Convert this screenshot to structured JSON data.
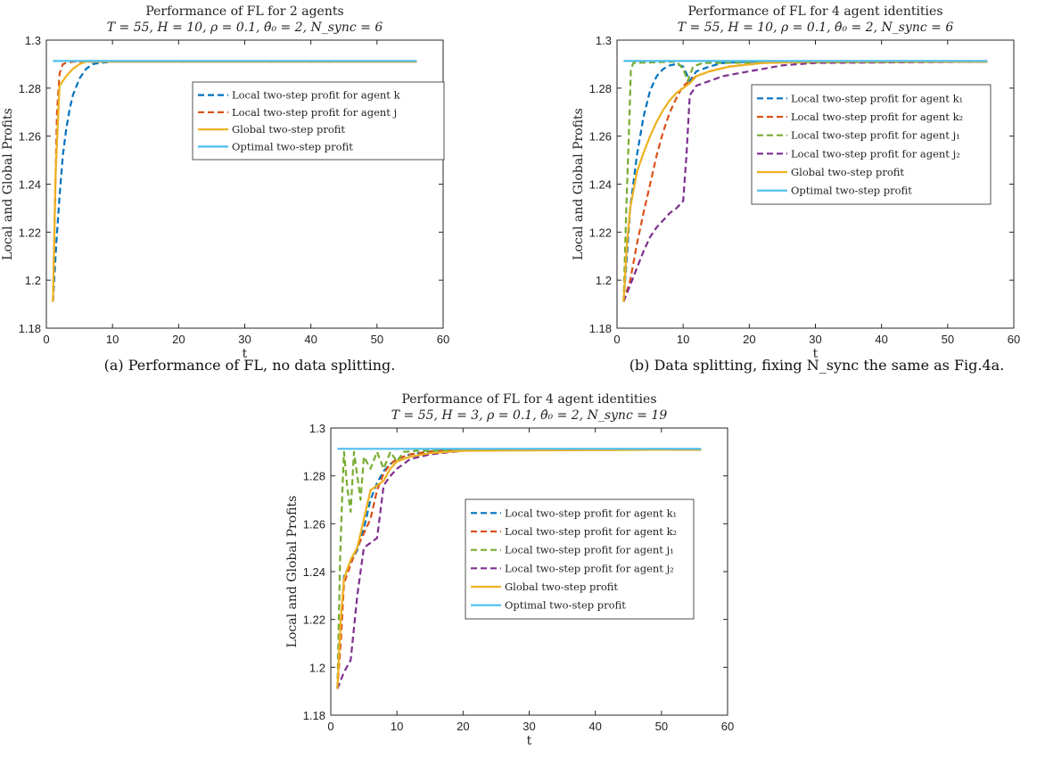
{
  "chart_data": [
    {
      "type": "line",
      "title": "Performance of FL for 2 agents",
      "subtitle": "T = 55, H = 10, ρ = 0.1, θ̂₀ = 2, N_sync = 6",
      "xlabel": "t",
      "ylabel": "Local and Global Profits",
      "xlim": [
        0,
        60
      ],
      "ylim": [
        1.18,
        1.3
      ],
      "xticks": [
        "0",
        "10",
        "20",
        "30",
        "40",
        "50",
        "60"
      ],
      "yticks": [
        "1.18",
        "1.2",
        "1.22",
        "1.24",
        "1.26",
        "1.28",
        "1.3"
      ],
      "grid": false,
      "legend_position": "top-right",
      "caption": "(a) Performance of FL, no data splitting.",
      "series": [
        {
          "name": "Local two-step profit for agent k",
          "color": "#0072BD",
          "dashed": true,
          "points": [
            [
              1,
              1.191
            ],
            [
              1.5,
              1.215
            ],
            [
              2,
              1.235
            ],
            [
              2.5,
              1.252
            ],
            [
              3,
              1.263
            ],
            [
              3.5,
              1.271
            ],
            [
              4,
              1.277
            ],
            [
              5,
              1.284
            ],
            [
              6,
              1.288
            ],
            [
              7,
              1.29
            ],
            [
              8,
              1.2905
            ],
            [
              10,
              1.291
            ],
            [
              56,
              1.291
            ]
          ]
        },
        {
          "name": "Local two-step profit for agent j",
          "color": "#D95319",
          "dashed": true,
          "points": [
            [
              1,
              1.191
            ],
            [
              1.3,
              1.23
            ],
            [
              1.6,
              1.27
            ],
            [
              2,
              1.286
            ],
            [
              2.5,
              1.29
            ],
            [
              3,
              1.2905
            ],
            [
              4,
              1.291
            ],
            [
              56,
              1.291
            ]
          ]
        },
        {
          "name": "Global two-step profit",
          "color": "#EDB120",
          "dashed": false,
          "points": [
            [
              1,
              1.191
            ],
            [
              1.4,
              1.245
            ],
            [
              2,
              1.281
            ],
            [
              3,
              1.285
            ],
            [
              4,
              1.288
            ],
            [
              5,
              1.29
            ],
            [
              6,
              1.291
            ],
            [
              56,
              1.291
            ]
          ]
        },
        {
          "name": "Optimal two-step profit",
          "color": "#4DBEEE",
          "dashed": false,
          "points": [
            [
              1,
              1.2913
            ],
            [
              56,
              1.2913
            ]
          ]
        }
      ]
    },
    {
      "type": "line",
      "title": "Performance of FL for 4 agent identities",
      "subtitle": "T = 55, H = 10, ρ = 0.1, θ̂₀ = 2, N_sync = 6",
      "xlabel": "t",
      "ylabel": "Local and Global Profits",
      "xlim": [
        0,
        60
      ],
      "ylim": [
        1.18,
        1.3
      ],
      "xticks": [
        "0",
        "10",
        "20",
        "30",
        "40",
        "50",
        "60"
      ],
      "yticks": [
        "1.18",
        "1.2",
        "1.22",
        "1.24",
        "1.26",
        "1.28",
        "1.3"
      ],
      "grid": false,
      "legend_position": "top-right",
      "caption": "(b) Data splitting, fixing N_sync the same as Fig.4a.",
      "series": [
        {
          "name": "Local two-step profit for agent k₁",
          "color": "#0072BD",
          "dashed": true,
          "points": [
            [
              1,
              1.191
            ],
            [
              1.5,
              1.21
            ],
            [
              2,
              1.23
            ],
            [
              3,
              1.252
            ],
            [
              4,
              1.268
            ],
            [
              5,
              1.279
            ],
            [
              6,
              1.285
            ],
            [
              7,
              1.288
            ],
            [
              8,
              1.2895
            ],
            [
              9,
              1.29
            ],
            [
              10,
              1.289
            ],
            [
              11,
              1.283
            ],
            [
              12,
              1.287
            ],
            [
              14,
              1.289
            ],
            [
              16,
              1.2905
            ],
            [
              20,
              1.291
            ],
            [
              56,
              1.291
            ]
          ]
        },
        {
          "name": "Local two-step profit for agent k₂",
          "color": "#D95319",
          "dashed": true,
          "points": [
            [
              1,
              1.191
            ],
            [
              2,
              1.2
            ],
            [
              3,
              1.215
            ],
            [
              4,
              1.228
            ],
            [
              5,
              1.24
            ],
            [
              6,
              1.252
            ],
            [
              7,
              1.262
            ],
            [
              8,
              1.27
            ],
            [
              9,
              1.276
            ],
            [
              10,
              1.281
            ],
            [
              12,
              1.285
            ],
            [
              14,
              1.287
            ],
            [
              17,
              1.289
            ],
            [
              22,
              1.2905
            ],
            [
              30,
              1.291
            ],
            [
              56,
              1.291
            ]
          ]
        },
        {
          "name": "Local two-step profit for agent j₁",
          "color": "#77AC30",
          "dashed": true,
          "points": [
            [
              1,
              1.191
            ],
            [
              1.4,
              1.23
            ],
            [
              1.8,
              1.262
            ],
            [
              2.1,
              1.288
            ],
            [
              2.5,
              1.2905
            ],
            [
              9,
              1.291
            ],
            [
              10,
              1.288
            ],
            [
              10.7,
              1.283
            ],
            [
              11.5,
              1.289
            ],
            [
              13,
              1.2905
            ],
            [
              56,
              1.291
            ]
          ]
        },
        {
          "name": "Local two-step profit for agent j₂",
          "color": "#7E2F8E",
          "dashed": true,
          "points": [
            [
              1,
              1.191
            ],
            [
              2,
              1.198
            ],
            [
              3,
              1.205
            ],
            [
              4,
              1.212
            ],
            [
              5,
              1.218
            ],
            [
              6,
              1.222
            ],
            [
              7,
              1.225
            ],
            [
              8,
              1.228
            ],
            [
              9,
              1.23
            ],
            [
              10,
              1.233
            ],
            [
              10.5,
              1.252
            ],
            [
              11,
              1.277
            ],
            [
              12,
              1.281
            ],
            [
              14,
              1.283
            ],
            [
              16,
              1.285
            ],
            [
              18,
              1.286
            ],
            [
              20,
              1.287
            ],
            [
              25,
              1.2895
            ],
            [
              30,
              1.2905
            ],
            [
              56,
              1.291
            ]
          ]
        },
        {
          "name": "Global two-step profit",
          "color": "#EDB120",
          "dashed": false,
          "points": [
            [
              1,
              1.191
            ],
            [
              1.5,
              1.215
            ],
            [
              2,
              1.23
            ],
            [
              3,
              1.245
            ],
            [
              4,
              1.253
            ],
            [
              5,
              1.26
            ],
            [
              6,
              1.266
            ],
            [
              7,
              1.271
            ],
            [
              8,
              1.275
            ],
            [
              9,
              1.278
            ],
            [
              10,
              1.28
            ],
            [
              11,
              1.282
            ],
            [
              12,
              1.285
            ],
            [
              14,
              1.287
            ],
            [
              17,
              1.289
            ],
            [
              22,
              1.2905
            ],
            [
              30,
              1.291
            ],
            [
              56,
              1.291
            ]
          ]
        },
        {
          "name": "Optimal two-step profit",
          "color": "#4DBEEE",
          "dashed": false,
          "points": [
            [
              1,
              1.2913
            ],
            [
              56,
              1.2913
            ]
          ]
        }
      ]
    },
    {
      "type": "line",
      "title": "Performance of FL for 4 agent identities",
      "subtitle": "T = 55, H = 3, ρ = 0.1, θ̂₀ = 2, N_sync = 19",
      "xlabel": "t",
      "ylabel": "Local and Global Profits",
      "xlim": [
        0,
        60
      ],
      "ylim": [
        1.18,
        1.3
      ],
      "xticks": [
        "0",
        "10",
        "20",
        "30",
        "40",
        "50",
        "60"
      ],
      "yticks": [
        "1.18",
        "1.2",
        "1.22",
        "1.24",
        "1.26",
        "1.28",
        "1.3"
      ],
      "grid": false,
      "legend_position": "top-right",
      "caption": "",
      "series": [
        {
          "name": "Local two-step profit for agent k₁",
          "color": "#0072BD",
          "dashed": true,
          "points": [
            [
              1,
              1.191
            ],
            [
              1.5,
              1.215
            ],
            [
              2,
              1.238
            ],
            [
              3,
              1.244
            ],
            [
              4,
              1.249
            ],
            [
              5,
              1.258
            ],
            [
              6,
              1.27
            ],
            [
              7,
              1.277
            ],
            [
              8,
              1.282
            ],
            [
              9,
              1.285
            ],
            [
              10,
              1.287
            ],
            [
              12,
              1.289
            ],
            [
              15,
              1.2902
            ],
            [
              20,
              1.291
            ],
            [
              56,
              1.291
            ]
          ]
        },
        {
          "name": "Local two-step profit for agent k₂",
          "color": "#D95319",
          "dashed": true,
          "points": [
            [
              1,
              1.191
            ],
            [
              1.5,
              1.21
            ],
            [
              2,
              1.235
            ],
            [
              3,
              1.243
            ],
            [
              4,
              1.25
            ],
            [
              5,
              1.256
            ],
            [
              6,
              1.262
            ],
            [
              7,
              1.274
            ],
            [
              8,
              1.281
            ],
            [
              9,
              1.285
            ],
            [
              10,
              1.287
            ],
            [
              12,
              1.289
            ],
            [
              16,
              1.2905
            ],
            [
              22,
              1.291
            ],
            [
              56,
              1.291
            ]
          ]
        },
        {
          "name": "Local two-step profit for agent j₁",
          "color": "#77AC30",
          "dashed": true,
          "points": [
            [
              1,
              1.191
            ],
            [
              1.4,
              1.245
            ],
            [
              1.8,
              1.278
            ],
            [
              2,
              1.29
            ],
            [
              2.5,
              1.275
            ],
            [
              3,
              1.265
            ],
            [
              3.5,
              1.29
            ],
            [
              4,
              1.28
            ],
            [
              4.5,
              1.27
            ],
            [
              5,
              1.288
            ],
            [
              6,
              1.283
            ],
            [
              7,
              1.29
            ],
            [
              8,
              1.283
            ],
            [
              9,
              1.29
            ],
            [
              10,
              1.286
            ],
            [
              11,
              1.29
            ],
            [
              13,
              1.2905
            ],
            [
              56,
              1.291
            ]
          ]
        },
        {
          "name": "Local two-step profit for agent j₂",
          "color": "#7E2F8E",
          "dashed": true,
          "points": [
            [
              1,
              1.191
            ],
            [
              2,
              1.198
            ],
            [
              3,
              1.203
            ],
            [
              4,
              1.23
            ],
            [
              5,
              1.25
            ],
            [
              6,
              1.252
            ],
            [
              7,
              1.254
            ],
            [
              8,
              1.276
            ],
            [
              9,
              1.28
            ],
            [
              10,
              1.283
            ],
            [
              12,
              1.287
            ],
            [
              15,
              1.289
            ],
            [
              20,
              1.2905
            ],
            [
              25,
              1.291
            ],
            [
              56,
              1.291
            ]
          ]
        },
        {
          "name": "Global two-step profit",
          "color": "#EDB120",
          "dashed": false,
          "points": [
            [
              1,
              1.191
            ],
            [
              1.5,
              1.22
            ],
            [
              2,
              1.237
            ],
            [
              3,
              1.245
            ],
            [
              4,
              1.25
            ],
            [
              5,
              1.262
            ],
            [
              6,
              1.274
            ],
            [
              7,
              1.276
            ],
            [
              8,
              1.278
            ],
            [
              9,
              1.283
            ],
            [
              10,
              1.286
            ],
            [
              12,
              1.288
            ],
            [
              15,
              1.2895
            ],
            [
              20,
              1.2905
            ],
            [
              56,
              1.291
            ]
          ]
        },
        {
          "name": "Optimal two-step profit",
          "color": "#4DBEEE",
          "dashed": false,
          "points": [
            [
              1,
              1.2913
            ],
            [
              56,
              1.2913
            ]
          ]
        }
      ]
    }
  ]
}
